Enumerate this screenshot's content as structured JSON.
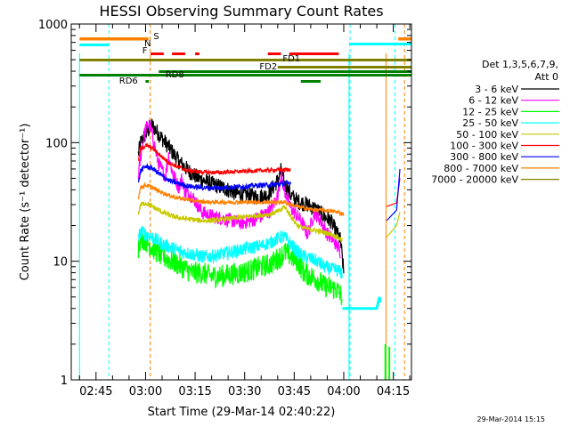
{
  "chart_data": {
    "type": "line",
    "title": "HESSI Observing Summary Count Rates",
    "xlabel": "Start Time (29-Mar-14 02:40:22)",
    "ylabel": "Count Rate (s⁻¹ detector⁻¹)",
    "x_range_min": [
      -2.5,
      100.5
    ],
    "x_ticks": [
      {
        "min": 5,
        "label": "02:45"
      },
      {
        "min": 20,
        "label": "03:00"
      },
      {
        "min": 35,
        "label": "03:15"
      },
      {
        "min": 50,
        "label": "03:30"
      },
      {
        "min": 65,
        "label": "03:45"
      },
      {
        "min": 80,
        "label": "04:00"
      },
      {
        "min": 95,
        "label": "04:15"
      }
    ],
    "y_scale": "log",
    "ylim": [
      1,
      1000
    ],
    "y_ticks": [
      {
        "value": 1,
        "label": "1"
      },
      {
        "value": 10,
        "label": "10"
      },
      {
        "value": 100,
        "label": "100"
      },
      {
        "value": 1000,
        "label": "1000"
      }
    ],
    "legend": {
      "header1": "Det 1,3,5,6,7,9,",
      "header2": "Att 0",
      "placement": "right"
    },
    "series": [
      {
        "name": "3 - 6 keV",
        "color": "#000000",
        "noise": 0.16,
        "points": [
          [
            17.8,
            80
          ],
          [
            18.5,
            100
          ],
          [
            20,
            118
          ],
          [
            22,
            140
          ],
          [
            24,
            118
          ],
          [
            27,
            92
          ],
          [
            30,
            70
          ],
          [
            33,
            58
          ],
          [
            36,
            50
          ],
          [
            39,
            46
          ],
          [
            42,
            43
          ],
          [
            45,
            40
          ],
          [
            48,
            37
          ],
          [
            51,
            36
          ],
          [
            54,
            35
          ],
          [
            57,
            36
          ],
          [
            60,
            48
          ],
          [
            61,
            58
          ],
          [
            62,
            45
          ],
          [
            64,
            36
          ],
          [
            66,
            32
          ],
          [
            69,
            30
          ],
          [
            72,
            27
          ],
          [
            74,
            24
          ],
          [
            76,
            22
          ],
          [
            79,
            15
          ],
          [
            80,
            8
          ]
        ]
      },
      {
        "name": "6 - 12 keV",
        "color": "#ff00ff",
        "noise": 0.14,
        "points": [
          [
            17.8,
            52
          ],
          [
            18.8,
            88
          ],
          [
            20,
            130
          ],
          [
            21,
            145
          ],
          [
            22,
            118
          ],
          [
            23,
            86
          ],
          [
            24,
            66
          ],
          [
            26,
            52
          ],
          [
            27,
            78
          ],
          [
            28,
            58
          ],
          [
            30,
            42
          ],
          [
            31,
            50
          ],
          [
            32,
            38
          ],
          [
            34,
            36
          ],
          [
            37,
            26
          ],
          [
            40,
            24
          ],
          [
            43,
            23
          ],
          [
            46,
            22
          ],
          [
            49,
            21
          ],
          [
            52,
            22
          ],
          [
            55,
            24
          ],
          [
            58,
            27
          ],
          [
            60,
            36
          ],
          [
            61,
            55
          ],
          [
            62,
            40
          ],
          [
            64,
            28
          ],
          [
            67,
            22
          ],
          [
            69,
            17
          ],
          [
            70,
            20
          ],
          [
            71,
            26
          ],
          [
            73,
            22
          ],
          [
            75,
            17
          ],
          [
            77,
            15
          ],
          [
            79,
            12
          ]
        ]
      },
      {
        "name": "12 - 25 keV",
        "color": "#00ff00",
        "noise": 0.22,
        "points": [
          [
            17.8,
            13
          ],
          [
            18.5,
            16
          ],
          [
            20,
            15
          ],
          [
            22,
            13
          ],
          [
            25,
            11
          ],
          [
            28,
            10
          ],
          [
            31,
            9
          ],
          [
            34,
            8
          ],
          [
            37,
            8
          ],
          [
            40,
            7.5
          ],
          [
            43,
            7.5
          ],
          [
            46,
            7.8
          ],
          [
            49,
            8
          ],
          [
            52,
            8.4
          ],
          [
            55,
            9
          ],
          [
            58,
            9.5
          ],
          [
            61,
            11
          ],
          [
            62,
            12
          ],
          [
            64,
            11
          ],
          [
            66,
            10
          ],
          [
            68,
            8
          ],
          [
            70,
            7.5
          ],
          [
            72,
            7
          ],
          [
            74,
            6.2
          ],
          [
            76,
            6
          ],
          [
            78,
            5.7
          ],
          [
            79.5,
            5
          ]
        ]
      },
      {
        "name": "25 - 50 keV",
        "color": "#00ffff",
        "noise": 0.13,
        "points": [
          [
            17.8,
            15
          ],
          [
            18.5,
            18
          ],
          [
            20,
            17
          ],
          [
            22,
            16
          ],
          [
            25,
            14
          ],
          [
            28,
            13
          ],
          [
            31,
            12
          ],
          [
            34,
            11.5
          ],
          [
            37,
            11
          ],
          [
            40,
            11
          ],
          [
            43,
            11.5
          ],
          [
            46,
            12
          ],
          [
            49,
            12.5
          ],
          [
            52,
            13
          ],
          [
            55,
            13.5
          ],
          [
            58,
            14.5
          ],
          [
            61,
            16
          ],
          [
            62,
            16
          ],
          [
            64,
            14
          ],
          [
            66,
            12
          ],
          [
            68,
            11
          ],
          [
            70,
            10.5
          ],
          [
            72,
            10
          ],
          [
            74,
            9
          ],
          [
            76,
            8.6
          ],
          [
            78,
            8.4
          ],
          [
            79.5,
            8
          ]
        ]
      },
      {
        "name": "50 - 100 keV",
        "color": "#c8c800",
        "noise": 0.05,
        "points": [
          [
            17.8,
            25
          ],
          [
            18.5,
            30
          ],
          [
            20,
            31
          ],
          [
            22,
            29
          ],
          [
            25,
            26
          ],
          [
            28,
            24
          ],
          [
            31,
            23
          ],
          [
            34,
            22.5
          ],
          [
            37,
            22
          ],
          [
            40,
            22
          ],
          [
            43,
            22.5
          ],
          [
            46,
            23
          ],
          [
            49,
            23.5
          ],
          [
            52,
            24
          ],
          [
            55,
            24.5
          ],
          [
            58,
            25
          ],
          [
            61,
            27
          ],
          [
            62,
            29
          ],
          [
            64,
            24
          ],
          [
            66,
            20
          ],
          [
            68,
            19
          ],
          [
            70,
            18.5
          ],
          [
            72,
            18
          ],
          [
            74,
            17.5
          ],
          [
            76,
            17
          ],
          [
            78,
            16
          ],
          [
            79.5,
            15
          ]
        ]
      },
      {
        "name": "100 - 300 keV",
        "color": "#ff0000",
        "noise": 0.04,
        "points": [
          [
            17.8,
            70
          ],
          [
            18.5,
            88
          ],
          [
            20,
            95
          ],
          [
            22,
            90
          ],
          [
            24,
            80
          ],
          [
            27,
            68
          ],
          [
            30,
            62
          ],
          [
            33,
            58
          ],
          [
            36,
            57
          ],
          [
            39,
            56
          ],
          [
            42,
            56
          ],
          [
            45,
            56.5
          ],
          [
            48,
            57
          ],
          [
            51,
            57.5
          ],
          [
            54,
            58
          ],
          [
            57,
            58.5
          ],
          [
            60,
            59
          ],
          [
            63,
            59
          ],
          [
            64,
            60
          ]
        ]
      },
      {
        "name": "300 - 800 keV",
        "color": "#0000ff",
        "noise": 0.05,
        "points": [
          [
            17.8,
            45
          ],
          [
            18.5,
            58
          ],
          [
            20,
            63
          ],
          [
            22,
            61
          ],
          [
            24,
            55
          ],
          [
            27,
            48
          ],
          [
            30,
            45
          ],
          [
            33,
            43
          ],
          [
            36,
            42
          ],
          [
            39,
            41.5
          ],
          [
            42,
            41.5
          ],
          [
            45,
            42
          ],
          [
            48,
            42.5
          ],
          [
            51,
            43
          ],
          [
            54,
            43.5
          ],
          [
            57,
            44
          ],
          [
            60,
            44.5
          ],
          [
            62,
            45
          ],
          [
            64,
            46
          ]
        ]
      },
      {
        "name": "800 - 7000 keV",
        "color": "#ff8000",
        "noise": 0.04,
        "points": [
          [
            17.8,
            34
          ],
          [
            18.5,
            42
          ],
          [
            20,
            44
          ],
          [
            22,
            42
          ],
          [
            24,
            39
          ],
          [
            27,
            36
          ],
          [
            30,
            34
          ],
          [
            33,
            33
          ],
          [
            36,
            32
          ],
          [
            39,
            31.5
          ],
          [
            42,
            31.5
          ],
          [
            45,
            31.5
          ],
          [
            48,
            31.5
          ],
          [
            51,
            31.5
          ],
          [
            54,
            31.5
          ],
          [
            57,
            31.5
          ],
          [
            60,
            31.5
          ],
          [
            62,
            31.5
          ],
          [
            64,
            30
          ],
          [
            66,
            29
          ],
          [
            68,
            28
          ],
          [
            70,
            27.5
          ],
          [
            72,
            27
          ],
          [
            74,
            27
          ],
          [
            76,
            26.5
          ],
          [
            78,
            26
          ],
          [
            80,
            25
          ]
        ]
      },
      {
        "name": "7000 - 20000 keV",
        "color": "#808000",
        "noise": 0.0,
        "points": []
      }
    ],
    "flag_labels": [
      {
        "text": "S",
        "color": "#ff8000"
      },
      {
        "text": "N",
        "color": "#00ffff"
      },
      {
        "text": "F",
        "color": "#ff0000"
      },
      {
        "text": "FD1",
        "color": "#808000"
      },
      {
        "text": "FD2",
        "color": "#808000"
      },
      {
        "text": "RD6",
        "color": "#008000"
      },
      {
        "text": "RD8",
        "color": "#008000"
      }
    ],
    "timestamp": "29-Mar-2014 15:15"
  }
}
